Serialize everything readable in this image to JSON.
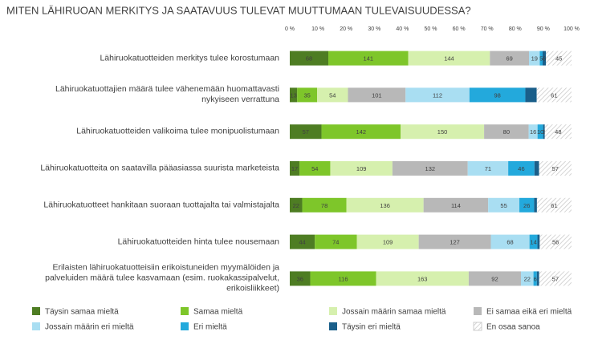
{
  "chart_data": {
    "type": "stacked-bar-100",
    "title": "MITEN LÄHIRUOAN MERKITYS JA SAATAVUUS TULEVAT MUUTTUMAAN TULEVAISUUDESSA?",
    "categories": [
      "Lähiruokatuotteiden merkitys tulee korostumaan",
      "Lähiruokatuottajien määrä tulee vähenemään huomattavasti nykyiseen verrattuna",
      "Lähiruokatuotteiden valikoima tulee monipuolistumaan",
      "Lähiruokatuotteita on saatavilla pääasiassa suurista marketeista",
      "Lähiruokatuotteet hankitaan suoraan tuottajalta tai valmistajalta",
      "Lähiruokatuotteiden hinta tulee nousemaan",
      "Erilaisten lähiruokatuotteisiin erikoistuneiden myymälöiden ja palveluiden määrä tulee kasvamaan (esim. ruokakassipalvelut, erikoisliikkeet)"
    ],
    "series": [
      {
        "name": "Täysin samaa mieltä",
        "color": "#4e7d23",
        "values": [
          68,
          13,
          57,
          17,
          22,
          44,
          36
        ]
      },
      {
        "name": "Samaa mieltä",
        "color": "#7ec62a",
        "values": [
          141,
          35,
          142,
          54,
          78,
          74,
          116
        ]
      },
      {
        "name": "Jossain määrin samaa mieltä",
        "color": "#d6f0ae",
        "values": [
          144,
          54,
          150,
          109,
          136,
          109,
          163
        ]
      },
      {
        "name": "Ei samaa eikä eri mieltä",
        "color": "#b8b8b8",
        "values": [
          69,
          101,
          80,
          132,
          114,
          127,
          92
        ]
      },
      {
        "name": "Jossain määrin eri mieltä",
        "color": "#a9def2",
        "values": [
          19,
          112,
          16,
          71,
          55,
          68,
          22
        ]
      },
      {
        "name": "Eri mieltä",
        "color": "#23a9dc",
        "values": [
          5,
          98,
          10,
          46,
          26,
          14,
          6
        ]
      },
      {
        "name": "Täysin eri mieltä",
        "color": "#1a5f8a",
        "values": [
          6,
          20,
          3,
          8,
          5,
          4,
          4
        ],
        "value_labels": [
          "6",
          null,
          "3",
          null,
          null,
          null,
          null
        ]
      },
      {
        "name": "En osaa sanoa",
        "color": "#e4e4e4",
        "hatch": true,
        "values": [
          45,
          61,
          48,
          57,
          61,
          56,
          57
        ]
      }
    ],
    "xlim": [
      0,
      100
    ],
    "xticks": [
      {
        "value": 0,
        "label": "0 %"
      },
      {
        "value": 10,
        "label": "10 %"
      },
      {
        "value": 20,
        "label": "20 %"
      },
      {
        "value": 30,
        "label": "30 %"
      },
      {
        "value": 40,
        "label": "40 %"
      },
      {
        "value": 50,
        "label": "50 %"
      },
      {
        "value": 60,
        "label": "60 %"
      },
      {
        "value": 70,
        "label": "70 %"
      },
      {
        "value": 80,
        "label": "80 %"
      },
      {
        "value": 90,
        "label": "90 %"
      },
      {
        "value": 100,
        "label": "100 %"
      }
    ],
    "grid": false
  }
}
